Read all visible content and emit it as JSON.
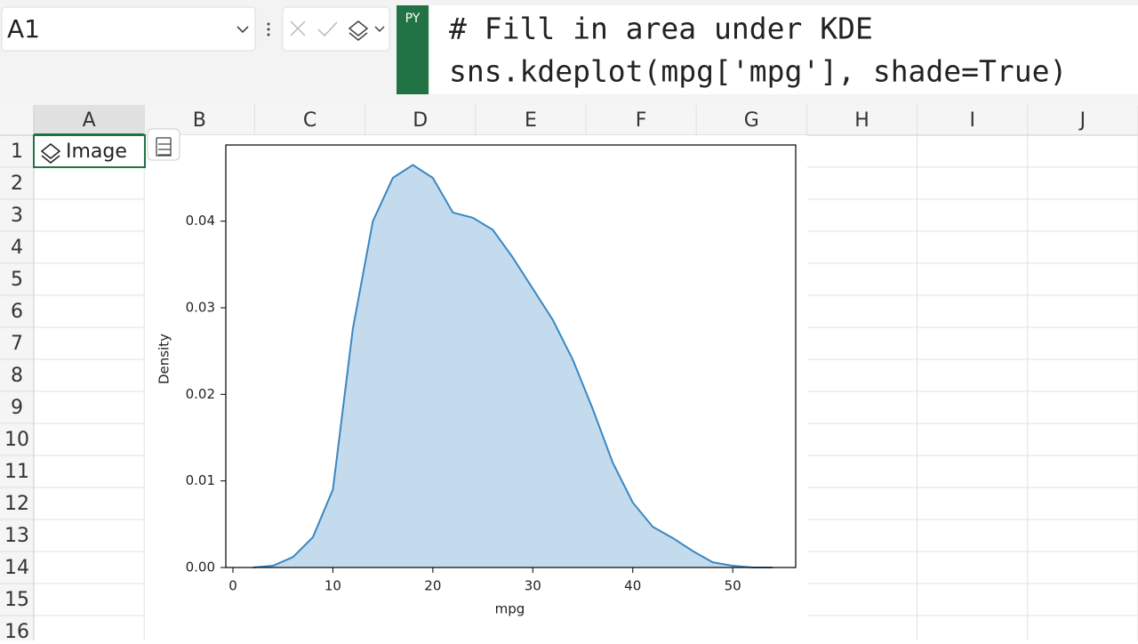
{
  "name_box": "A1",
  "python_badge": "PY",
  "formula": [
    "# Fill in area under KDE",
    "sns.kdeplot(mpg['mpg'], shade=True)"
  ],
  "columns": [
    "A",
    "B",
    "C",
    "D",
    "E",
    "F",
    "G",
    "H",
    "I",
    "J"
  ],
  "rows": [
    1,
    2,
    3,
    4,
    5,
    6,
    7,
    8,
    9,
    10,
    11,
    12,
    13,
    14,
    15,
    16
  ],
  "cells": {
    "A1": "Image"
  },
  "chart_data": {
    "type": "area",
    "xlabel": "mpg",
    "ylabel": "Density",
    "x": [
      2,
      4,
      6,
      8,
      10,
      12,
      14,
      16,
      18,
      20,
      22,
      24,
      26,
      28,
      30,
      32,
      34,
      36,
      38,
      40,
      42,
      44,
      46,
      48,
      50,
      52,
      54
    ],
    "series": [
      {
        "name": "mpg",
        "color": "#3a87c2",
        "values": [
          0,
          0.0002,
          0.0012,
          0.0035,
          0.009,
          0.0276,
          0.04,
          0.045,
          0.0465,
          0.045,
          0.041,
          0.0404,
          0.039,
          0.0358,
          0.0322,
          0.0286,
          0.024,
          0.0183,
          0.0121,
          0.0075,
          0.0047,
          0.0034,
          0.0019,
          0.0006,
          0.0002,
          0,
          0
        ]
      }
    ],
    "xlim": [
      -0.71,
      56.3
    ],
    "ylim": [
      0,
      0.0488
    ],
    "xticks": [
      0,
      10,
      20,
      30,
      40,
      50
    ],
    "yticks": [
      {
        "value": 0,
        "label": "0.00"
      },
      {
        "value": 0.01,
        "label": "0.01"
      },
      {
        "value": 0.02,
        "label": "0.02"
      },
      {
        "value": 0.03,
        "label": "0.03"
      },
      {
        "value": 0.04,
        "label": "0.04"
      }
    ]
  }
}
